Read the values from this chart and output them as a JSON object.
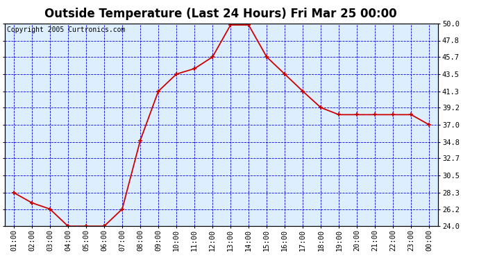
{
  "title": "Outside Temperature (Last 24 Hours) Fri Mar 25 00:00",
  "copyright": "Copyright 2005 Curtronics.com",
  "x_labels": [
    "01:00",
    "02:00",
    "03:00",
    "04:00",
    "05:00",
    "06:00",
    "07:00",
    "08:00",
    "09:00",
    "10:00",
    "11:00",
    "12:00",
    "13:00",
    "14:00",
    "15:00",
    "16:00",
    "17:00",
    "18:00",
    "19:00",
    "20:00",
    "21:00",
    "22:00",
    "23:00",
    "00:00"
  ],
  "y_values": [
    28.3,
    27.0,
    26.2,
    24.0,
    24.0,
    24.0,
    26.2,
    35.0,
    41.3,
    43.5,
    44.2,
    45.7,
    49.8,
    49.8,
    45.7,
    43.5,
    41.3,
    39.2,
    38.3,
    38.3,
    38.3,
    38.3,
    38.3,
    37.0
  ],
  "ylim_min": 24.0,
  "ylim_max": 50.0,
  "yticks": [
    24.0,
    26.2,
    28.3,
    30.5,
    32.7,
    34.8,
    37.0,
    39.2,
    41.3,
    43.5,
    45.7,
    47.8,
    50.0
  ],
  "ytick_labels": [
    "24.0",
    "26.2",
    "28.3",
    "30.5",
    "32.7",
    "34.8",
    "37.0",
    "39.2",
    "41.3",
    "43.5",
    "45.7",
    "47.8",
    "50.0"
  ],
  "line_color": "#cc0000",
  "marker_color": "#cc0000",
  "grid_color": "#0000dd",
  "background_color": "#ddeeff",
  "title_fontsize": 12,
  "copyright_fontsize": 7,
  "axis_fontsize": 7.5
}
